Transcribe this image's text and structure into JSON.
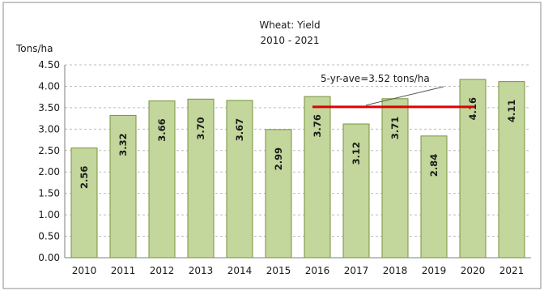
{
  "chart_data": {
    "type": "bar",
    "title": "Wheat: Yield",
    "subtitle": "2010 - 2021",
    "ylabel": "Tons/ha",
    "xlabel": "",
    "categories": [
      "2010",
      "2011",
      "2012",
      "2013",
      "2014",
      "2015",
      "2016",
      "2017",
      "2018",
      "2019",
      "2020",
      "2021"
    ],
    "values": [
      2.56,
      3.32,
      3.66,
      3.7,
      3.67,
      2.99,
      3.76,
      3.12,
      3.71,
      2.84,
      4.16,
      4.11
    ],
    "value_labels": [
      "2.56",
      "3.32",
      "3.66",
      "3.70",
      "3.67",
      "2.99",
      "3.76",
      "3.12",
      "3.71",
      "2.84",
      "4.16",
      "4.11"
    ],
    "ylim": [
      0,
      4.5
    ],
    "yticks": [
      "0.00",
      "0.50",
      "1.00",
      "1.50",
      "2.00",
      "2.50",
      "3.00",
      "3.50",
      "4.00",
      "4.50"
    ],
    "grid": true,
    "legend": "none",
    "bar_color": "#c3d69b",
    "bar_edge_color": "#77933c",
    "reference_line": {
      "label": "5-yr-ave=3.52 tons/ha",
      "value": 3.52,
      "from_category": "2016",
      "to_category": "2020",
      "color": "#e00000"
    }
  }
}
